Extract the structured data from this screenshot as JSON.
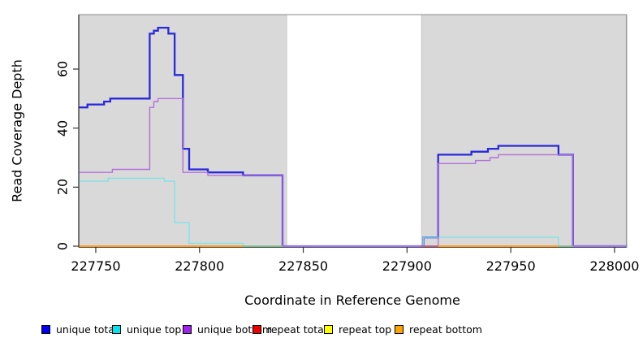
{
  "figure": {
    "background": "#FFFFFF",
    "shaded_region_fill": "#D9D9D9",
    "shaded_region_border": "#C8C8C8",
    "box_color": "#9A9A9A",
    "axis_line_color": "#333333",
    "tick_color": "#333333",
    "text_color": "#000000"
  },
  "chart_data": {
    "type": "line",
    "subtype": "step",
    "title": "",
    "xlabel": "Coordinate in Reference Genome",
    "ylabel": "Read Coverage Depth",
    "xlim": [
      227741.8,
      228005.7
    ],
    "ylim": [
      0,
      78
    ],
    "x_ticks": [
      227750,
      227800,
      227850,
      227900,
      227950,
      228000
    ],
    "y_ticks": [
      0,
      20,
      40,
      60
    ],
    "grid": false,
    "legend_position": "bottom",
    "shaded_regions": [
      {
        "from": 227742,
        "to": 227842
      },
      {
        "from": 227907,
        "to": 228006
      }
    ],
    "series": [
      {
        "name": "unique total",
        "line_color": "#2828DC",
        "line_width": 2.3,
        "x_end": 228006,
        "steps": [
          [
            227742,
            47
          ],
          [
            227746,
            48
          ],
          [
            227754,
            49
          ],
          [
            227757,
            50
          ],
          [
            227776,
            72
          ],
          [
            227778,
            73
          ],
          [
            227780,
            74
          ],
          [
            227785,
            72
          ],
          [
            227788,
            58
          ],
          [
            227792,
            33
          ],
          [
            227795,
            26
          ],
          [
            227804,
            25
          ],
          [
            227821,
            24
          ],
          [
            227840,
            0
          ],
          [
            227908,
            3
          ],
          [
            227915,
            31
          ],
          [
            227931,
            32
          ],
          [
            227939,
            33
          ],
          [
            227944,
            34
          ],
          [
            227973,
            31
          ],
          [
            227980,
            0
          ]
        ]
      },
      {
        "name": "unique top",
        "line_color": "#7FE3E8",
        "line_width": 1.4,
        "x_end": 228006,
        "steps": [
          [
            227742,
            22
          ],
          [
            227756,
            23
          ],
          [
            227783,
            22
          ],
          [
            227788,
            8
          ],
          [
            227795,
            1
          ],
          [
            227821,
            0
          ],
          [
            227908,
            3
          ],
          [
            227973,
            0
          ]
        ]
      },
      {
        "name": "unique bottom",
        "line_color": "#B470DC",
        "line_width": 1.4,
        "x_end": 228006,
        "steps": [
          [
            227742,
            25
          ],
          [
            227758,
            26
          ],
          [
            227776,
            47
          ],
          [
            227778,
            49
          ],
          [
            227780,
            50
          ],
          [
            227792,
            25
          ],
          [
            227804,
            24
          ],
          [
            227840,
            0
          ],
          [
            227915,
            28
          ],
          [
            227933,
            29
          ],
          [
            227940,
            30
          ],
          [
            227944,
            31
          ],
          [
            227980,
            0
          ]
        ]
      },
      {
        "name": "repeat total",
        "line_color": "#DD2222",
        "line_width": 1.4,
        "value": 0,
        "segments": [
          [
            227742,
            227821
          ],
          [
            227915,
            227973
          ]
        ]
      },
      {
        "name": "repeat top",
        "line_color": "#F0E840",
        "line_width": 1.4,
        "value": 0,
        "segments": [
          [
            227742,
            227821
          ],
          [
            227915,
            227973
          ]
        ]
      },
      {
        "name": "repeat bottom",
        "line_color": "#FF9C20",
        "line_width": 2,
        "value": 0,
        "segments": [
          [
            227742,
            227821
          ],
          [
            227915,
            227973
          ]
        ]
      }
    ],
    "overlap_segments": [
      {
        "from": 227821,
        "to": 227840,
        "value": 0,
        "color": "#7FBF7F"
      },
      {
        "from": 227907,
        "to": 227915,
        "value": 0,
        "color": "#CC5577"
      },
      {
        "from": 227973,
        "to": 227980,
        "value": 0,
        "color": "#7FBF7F"
      }
    ]
  },
  "legend": {
    "items": [
      {
        "label": "unique total",
        "color": "#0000EE"
      },
      {
        "label": "unique top",
        "color": "#00E5EE"
      },
      {
        "label": "unique bottom",
        "color": "#A020F0"
      },
      {
        "label": "repeat total",
        "color": "#EE0000"
      },
      {
        "label": "repeat top",
        "color": "#FFFF00"
      },
      {
        "label": "repeat bottom",
        "color": "#FFA500"
      }
    ]
  }
}
